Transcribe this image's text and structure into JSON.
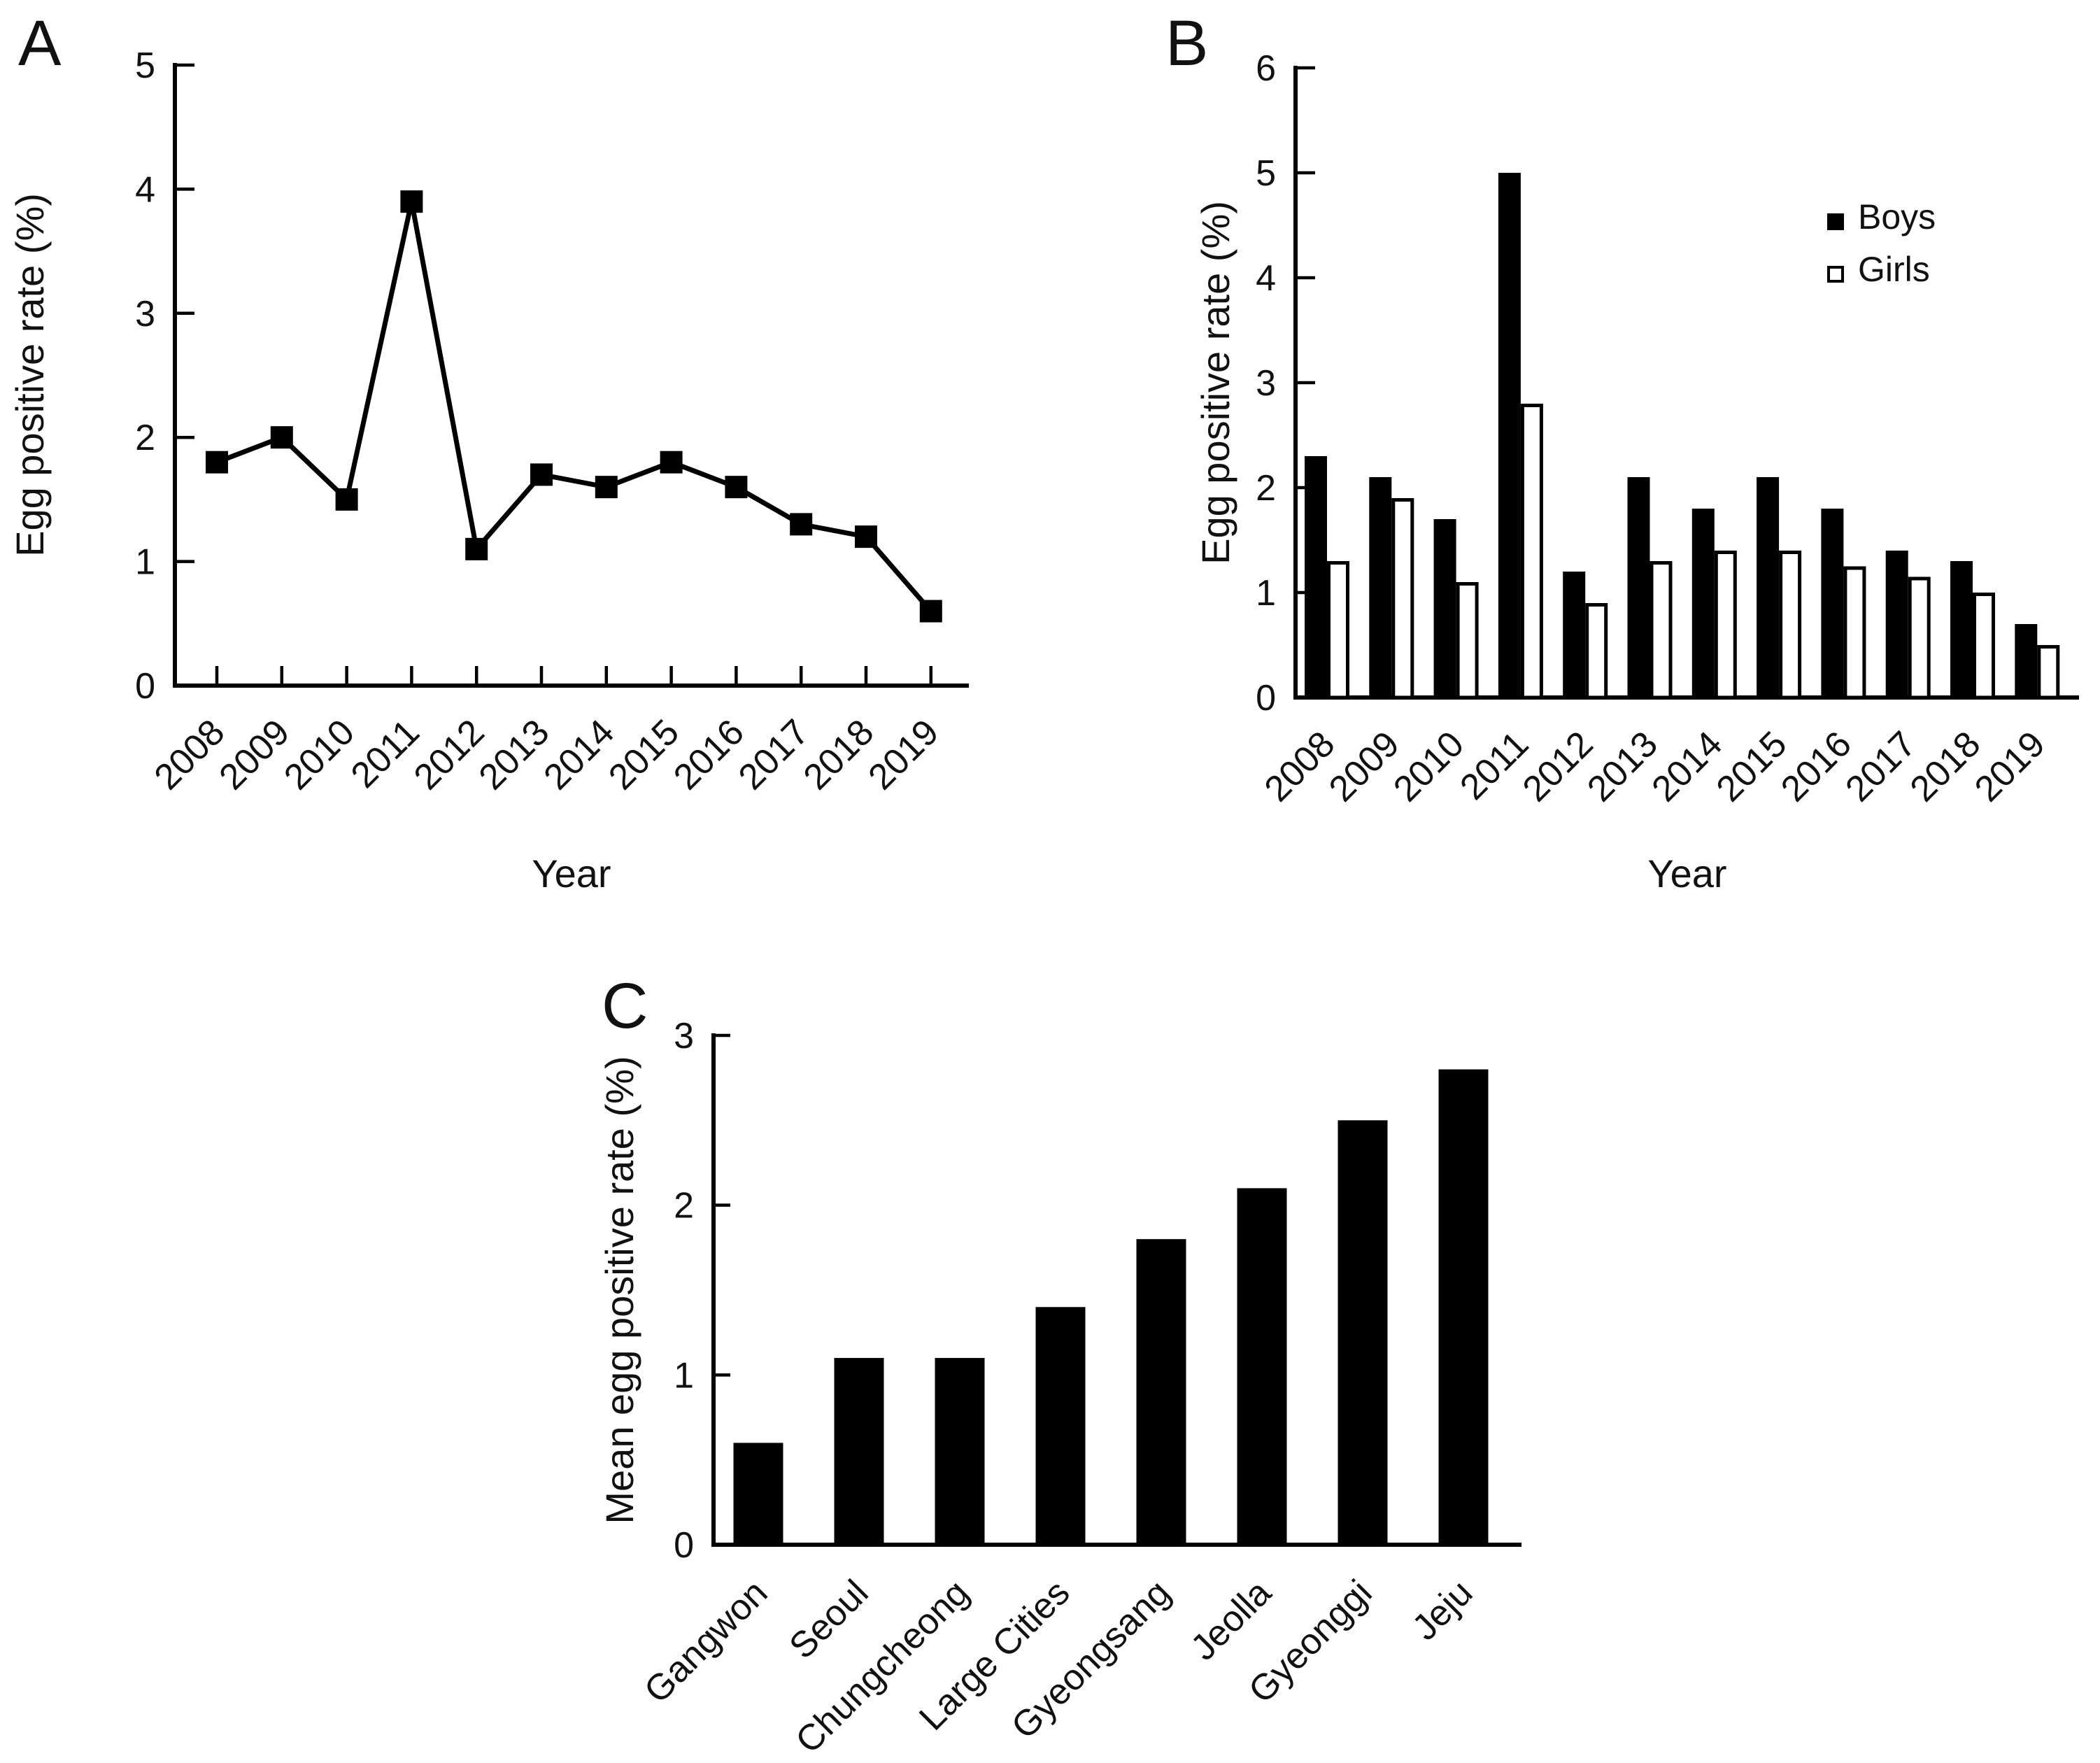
{
  "figure": {
    "background": "#ffffff",
    "ink_color": "#000000",
    "panels": [
      {
        "letter": "A"
      },
      {
        "letter": "B"
      },
      {
        "letter": "C"
      }
    ]
  },
  "chart_data": [
    {
      "type": "line",
      "panel": "A",
      "title": "",
      "xlabel": "Year",
      "ylabel": "Egg positive rate (%)",
      "categories": [
        "2008",
        "2009",
        "2010",
        "2011",
        "2012",
        "2013",
        "2014",
        "2015",
        "2016",
        "2017",
        "2018",
        "2019"
      ],
      "values": [
        1.8,
        2.0,
        1.5,
        3.9,
        1.1,
        1.7,
        1.6,
        1.8,
        1.6,
        1.3,
        1.2,
        0.6
      ],
      "ylim": [
        0,
        5
      ],
      "yticks": [
        0,
        1,
        2,
        3,
        4,
        5
      ],
      "marker": "filled-square",
      "line_color": "#000000",
      "grid": false
    },
    {
      "type": "bar",
      "panel": "B",
      "title": "",
      "xlabel": "Year",
      "ylabel": "Egg positive rate (%)",
      "categories": [
        "2008",
        "2009",
        "2010",
        "2011",
        "2012",
        "2013",
        "2014",
        "2015",
        "2016",
        "2017",
        "2018",
        "2019"
      ],
      "series": [
        {
          "name": "Boys",
          "fill": "#000000",
          "stroke": "#000000",
          "values": [
            2.3,
            2.1,
            1.7,
            5.0,
            1.2,
            2.1,
            1.8,
            2.1,
            1.8,
            1.4,
            1.3,
            0.7
          ]
        },
        {
          "name": "Girls",
          "fill": "#ffffff",
          "stroke": "#000000",
          "values": [
            1.3,
            1.9,
            1.1,
            2.8,
            0.9,
            1.3,
            1.4,
            1.4,
            1.25,
            1.15,
            1.0,
            0.5
          ]
        }
      ],
      "ylim": [
        0,
        6
      ],
      "yticks": [
        0,
        1,
        2,
        3,
        4,
        5,
        6
      ],
      "legend_position": "upper-right",
      "grid": false
    },
    {
      "type": "bar",
      "panel": "C",
      "title": "",
      "xlabel": "",
      "ylabel": "Mean egg positive rate (%)",
      "categories": [
        "Gangwon",
        "Seoul",
        "Chungcheong",
        "Large Cities",
        "Gyeongsang",
        "Jeolla",
        "Gyeonggi",
        "Jeju"
      ],
      "values": [
        0.6,
        1.1,
        1.1,
        1.4,
        1.8,
        2.1,
        2.5,
        2.8
      ],
      "ylim": [
        0,
        3
      ],
      "yticks": [
        0,
        1,
        2,
        3
      ],
      "bar_color": "#000000",
      "grid": false
    }
  ]
}
